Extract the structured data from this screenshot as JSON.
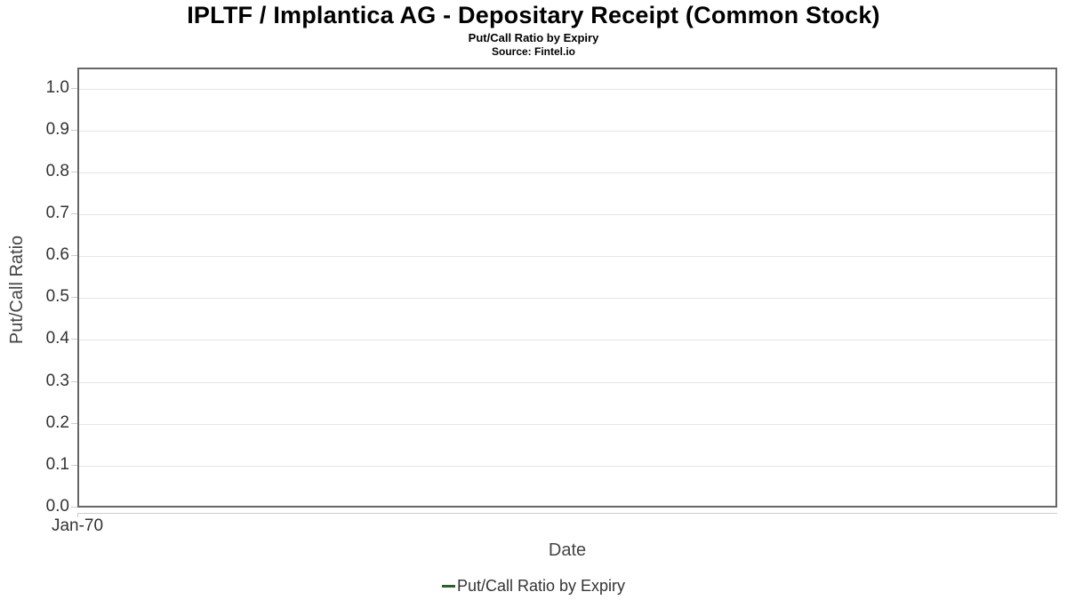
{
  "chart_data": {
    "type": "line",
    "title": "IPLTF / Implantica AG - Depositary Receipt (Common Stock)",
    "subtitle": "Put/Call Ratio by Expiry",
    "source": "Source: Fintel.io",
    "xlabel": "Date",
    "ylabel": "Put/Call Ratio",
    "x_tick_labels": [
      "Jan-70"
    ],
    "y_ticks": [
      0.0,
      0.1,
      0.2,
      0.3,
      0.4,
      0.5,
      0.6,
      0.7,
      0.8,
      0.9,
      1.0
    ],
    "y_tick_labels": [
      "0.0",
      "0.1",
      "0.2",
      "0.3",
      "0.4",
      "0.5",
      "0.6",
      "0.7",
      "0.8",
      "0.9",
      "1.0"
    ],
    "ylim": [
      0,
      1.05
    ],
    "grid": "horizontal",
    "legend_position": "bottom-center",
    "series": [
      {
        "name": "Put/Call Ratio by Expiry",
        "color": "#2c5f2d",
        "x": [],
        "values": []
      }
    ],
    "colors": {
      "plot_border": "#666666",
      "gridline": "#e6e6e6",
      "tick": "#cccccc",
      "tick_text": "#333333",
      "axis_title_text": "#444444",
      "title_text": "#000000",
      "background": "#ffffff"
    }
  }
}
